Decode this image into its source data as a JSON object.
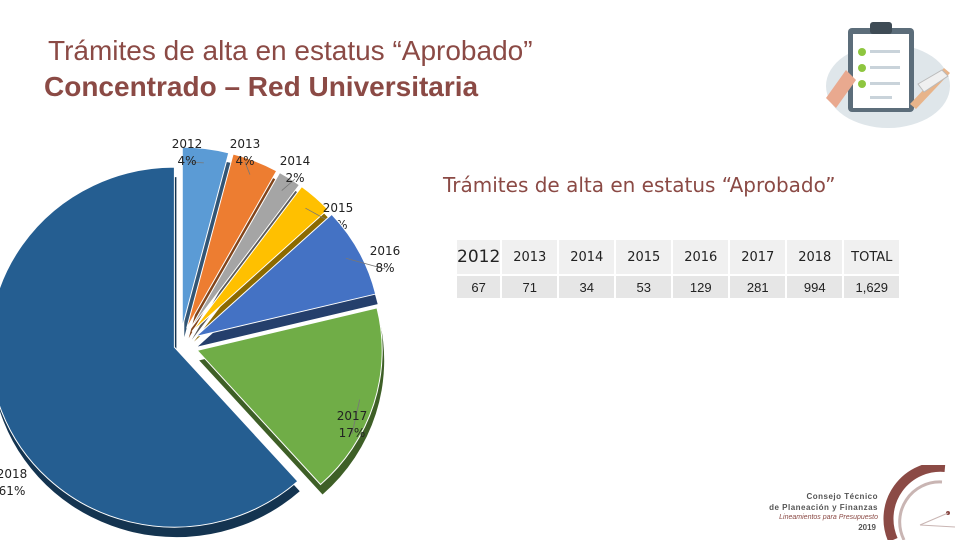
{
  "title": {
    "line1": "Trámites de alta en estatus “Aprobado”",
    "line2": "Concentrado – Red Universitaria"
  },
  "chart_data": [
    {
      "type": "pie",
      "categories": [
        "2012",
        "2013",
        "2014",
        "2015",
        "2016",
        "2017",
        "2018"
      ],
      "values": [
        4,
        4,
        2,
        3,
        8,
        17,
        61
      ],
      "value_labels": [
        "4%",
        "4%",
        "2%",
        "3%",
        "8%",
        "17%",
        "61%"
      ],
      "colors": [
        "#5b9bd5",
        "#ed7d31",
        "#a5a5a5",
        "#ffc000",
        "#4472c4",
        "#70ad47",
        "#255e91"
      ],
      "exploded": true,
      "style": "3d"
    },
    {
      "type": "table",
      "title": "Trámites de alta en estatus “Aprobado”",
      "headers": [
        "2012",
        "2013",
        "2014",
        "2015",
        "2016",
        "2017",
        "2018",
        "TOTAL"
      ],
      "values": [
        "67",
        "71",
        "34",
        "53",
        "129",
        "281",
        "994",
        "1,629"
      ]
    }
  ],
  "logo": {
    "line1": "Consejo Técnico",
    "line2": "de Planeación y Finanzas",
    "line3": "Lineamientos para Presupuesto",
    "line4": "2019"
  },
  "icons": [
    "clipboard-checklist-icon",
    "council-logo-icon"
  ]
}
